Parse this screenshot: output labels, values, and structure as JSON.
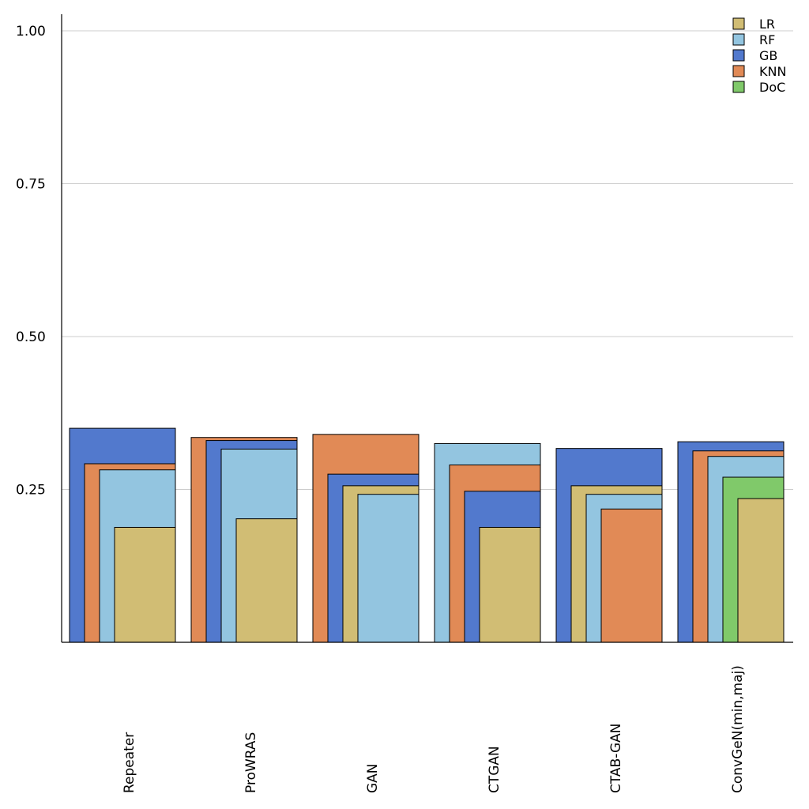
{
  "chart_data": {
    "type": "bar",
    "title": "",
    "xlabel": "",
    "ylabel": "",
    "ylim": [
      0,
      1.0
    ],
    "yticks": [
      0.25,
      0.5,
      0.75,
      1.0
    ],
    "ytick_labels": [
      "0.25",
      "0.50",
      "0.75",
      "1.00"
    ],
    "grid": true,
    "legend_position": "top-right",
    "categories": [
      "Repeater",
      "ProWRAS",
      "GAN",
      "CTGAN",
      "CTAB-GAN",
      "ConvGeN(min,maj)"
    ],
    "series": [
      {
        "name": "LR",
        "color": "#d1bd74",
        "values": [
          0.188,
          0.202,
          0.256,
          0.188,
          0.256,
          0.235
        ]
      },
      {
        "name": "RF",
        "color": "#93c5e0",
        "values": [
          0.282,
          0.316,
          0.242,
          0.325,
          0.242,
          0.304
        ]
      },
      {
        "name": "GB",
        "color": "#5279cd",
        "values": [
          0.35,
          0.33,
          0.275,
          0.247,
          0.317,
          0.328
        ]
      },
      {
        "name": "KNN",
        "color": "#e18a56",
        "values": [
          0.292,
          0.335,
          0.34,
          0.29,
          0.218,
          0.313
        ]
      },
      {
        "name": "DoC",
        "color": "#80c96a",
        "values": [
          null,
          null,
          null,
          null,
          null,
          0.27
        ]
      }
    ]
  }
}
